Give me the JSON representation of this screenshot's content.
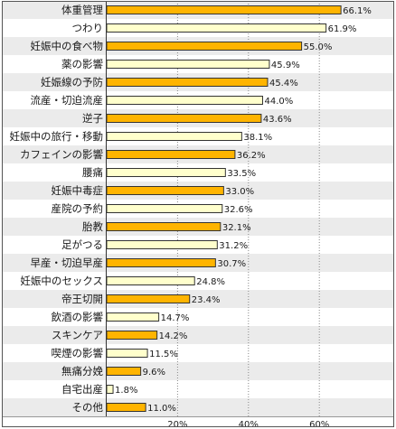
{
  "chart_data": {
    "type": "bar",
    "orientation": "horizontal",
    "title": "",
    "xlabel": "",
    "ylabel": "",
    "xlim": [
      0,
      70
    ],
    "x_ticks": [
      20,
      40,
      60
    ],
    "x_tick_labels": [
      "20%",
      "40%",
      "60%"
    ],
    "grid": true,
    "colors": {
      "orange": "#ffb400",
      "cream": "#ffffcc",
      "row_band": "#ebebeb",
      "border": "#555555",
      "grid": "#888888"
    },
    "categories": [
      "体重管理",
      "つわり",
      "妊娠中の食べ物",
      "薬の影響",
      "妊娠線の予防",
      "流産・切迫流産",
      "逆子",
      "妊娠中の旅行・移動",
      "カフェインの影響",
      "腰痛",
      "妊娠中毒症",
      "産院の予約",
      "胎教",
      "足がつる",
      "早産・切迫早産",
      "妊娠中のセックス",
      "帝王切開",
      "飲酒の影響",
      "スキンケア",
      "喫煙の影響",
      "無痛分娩",
      "自宅出産",
      "その他"
    ],
    "values": [
      66.1,
      61.9,
      55.0,
      45.9,
      45.4,
      44.0,
      43.6,
      38.1,
      36.2,
      33.5,
      33.0,
      32.6,
      32.1,
      31.2,
      30.7,
      24.8,
      23.4,
      14.7,
      14.2,
      11.5,
      9.6,
      1.8,
      11.0
    ],
    "value_labels": [
      "66.1%",
      "61.9%",
      "55.0%",
      "45.9%",
      "45.4%",
      "44.0%",
      "43.6%",
      "38.1%",
      "36.2%",
      "33.5%",
      "33.0%",
      "32.6%",
      "32.1%",
      "31.2%",
      "30.7%",
      "24.8%",
      "23.4%",
      "14.7%",
      "14.2%",
      "11.5%",
      "9.6%",
      "1.8%",
      "11.0%"
    ]
  }
}
